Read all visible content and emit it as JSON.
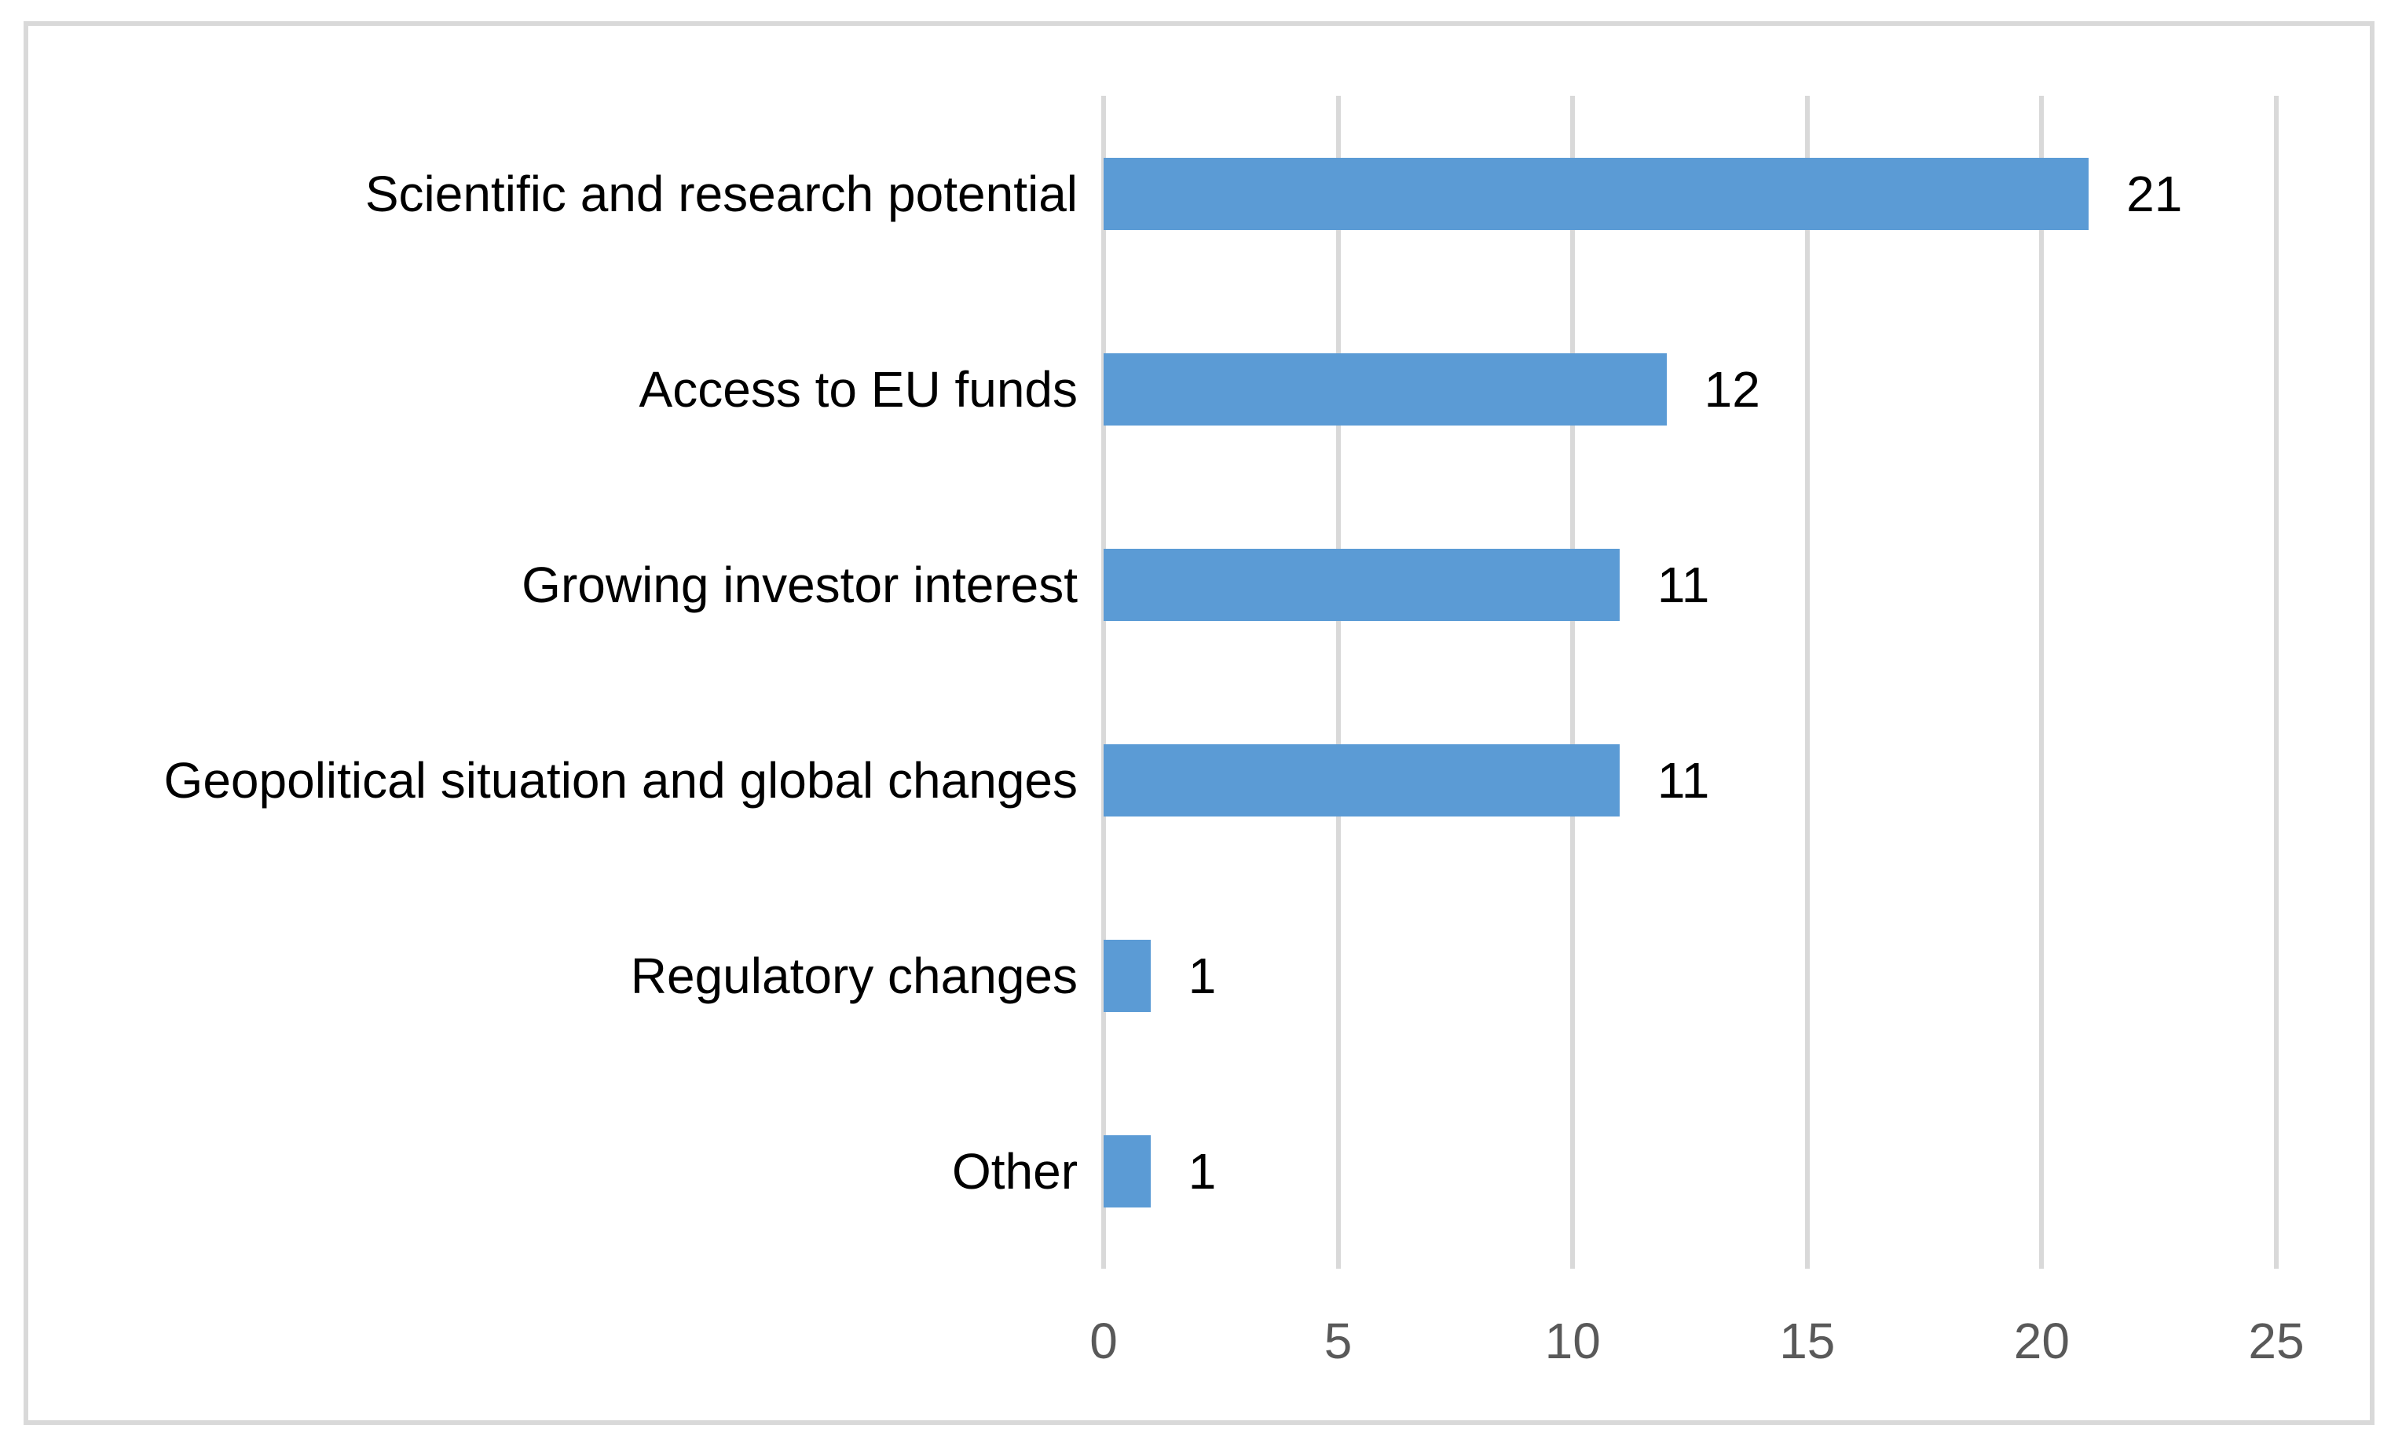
{
  "chart_data": {
    "type": "bar",
    "orientation": "horizontal",
    "title": "",
    "xlabel": "",
    "ylabel": "",
    "categories": [
      "Scientific and research potential",
      "Access to EU funds",
      "Growing investor interest",
      "Geopolitical situation and global changes",
      "Regulatory changes",
      "Other"
    ],
    "values": [
      21,
      12,
      11,
      11,
      1,
      1
    ],
    "data_labels": [
      "21",
      "12",
      "11",
      "11",
      "1",
      "1"
    ],
    "xlim": [
      0,
      25
    ],
    "xticks": [
      "0",
      "5",
      "10",
      "15",
      "20",
      "25"
    ],
    "grid": "vertical gridlines on",
    "legend": "none",
    "colors": {
      "bar_fill": "#5B9BD5",
      "gridline": "#D9D9D9",
      "chart_border": "#D9D9D9",
      "tick_label": "#595959",
      "category_label": "#000000",
      "data_label": "#000000",
      "background": "#FFFFFF"
    }
  }
}
